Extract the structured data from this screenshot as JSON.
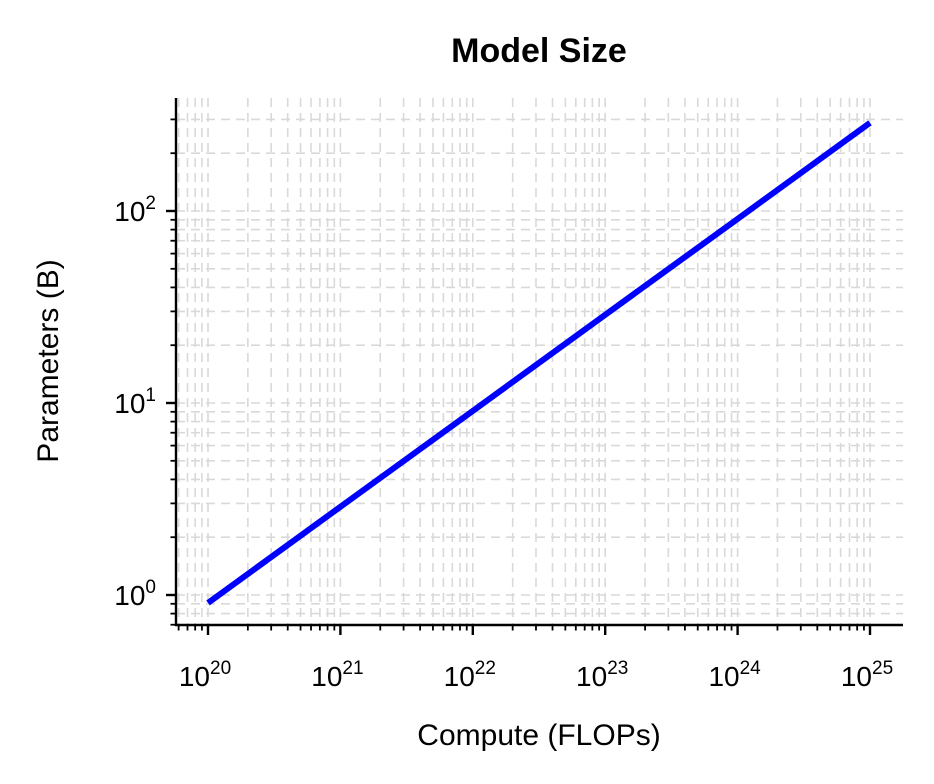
{
  "chart_data": {
    "type": "line",
    "title": "Model Size",
    "xlabel": "Compute (FLOPs)",
    "ylabel": "Parameters (B)",
    "xscale": "log",
    "yscale": "log",
    "xlim": [
      5e+19,
      2e+25
    ],
    "ylim": [
      0.7,
      400
    ],
    "grid": true,
    "grid_style": "dashed, light gray, major and minor",
    "x_ticks": [
      "10^20",
      "10^21",
      "10^22",
      "10^23",
      "10^24",
      "10^25"
    ],
    "y_ticks": [
      "10^0",
      "10^1",
      "10^2"
    ],
    "series": [
      {
        "name": "Model Size",
        "color": "#0000ff",
        "x": [
          1e+20,
          1e+21,
          1e+22,
          1e+23,
          1e+24,
          1e+25
        ],
        "values": [
          0.91,
          2.88,
          9.1,
          28.8,
          91,
          288
        ]
      }
    ]
  },
  "labels": {
    "title": "Model Size",
    "xlabel": "Compute (FLOPs)",
    "ylabel": "Parameters (B)",
    "x_ticks": [
      {
        "base": "10",
        "exp": "20"
      },
      {
        "base": "10",
        "exp": "21"
      },
      {
        "base": "10",
        "exp": "22"
      },
      {
        "base": "10",
        "exp": "23"
      },
      {
        "base": "10",
        "exp": "24"
      },
      {
        "base": "10",
        "exp": "25"
      }
    ],
    "y_ticks": [
      {
        "base": "10",
        "exp": "0"
      },
      {
        "base": "10",
        "exp": "1"
      },
      {
        "base": "10",
        "exp": "2"
      }
    ]
  },
  "colors": {
    "line": "#0000ff",
    "axis": "#000000",
    "grid": "#d9d9d9"
  }
}
